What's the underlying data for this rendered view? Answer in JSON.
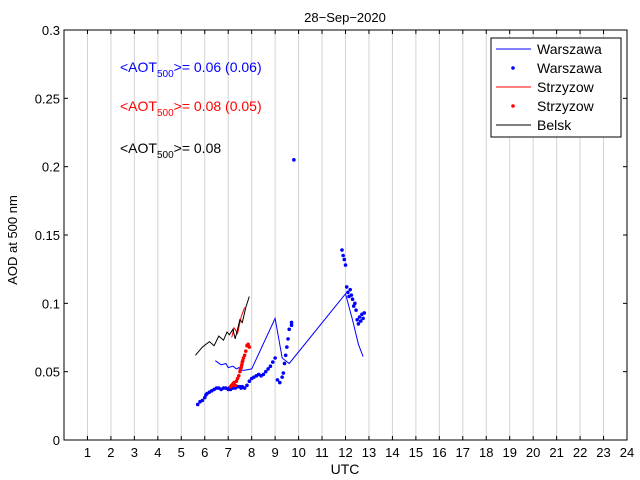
{
  "chart_data": {
    "type": "line",
    "title": "28−Sep−2020",
    "xlabel": "UTC",
    "ylabel": "AOD at 500 nm",
    "xlim": [
      0,
      24
    ],
    "ylim": [
      0,
      0.3
    ],
    "x_ticks": [
      1,
      2,
      3,
      4,
      5,
      6,
      7,
      8,
      9,
      10,
      11,
      12,
      13,
      14,
      15,
      16,
      17,
      18,
      19,
      20,
      21,
      22,
      23,
      24
    ],
    "y_ticks": [
      0,
      0.05,
      0.1,
      0.15,
      0.2,
      0.25,
      0.3
    ],
    "y_tick_labels": [
      "0",
      "0.05",
      "0.1",
      "0.15",
      "0.2",
      "0.25",
      "0.3"
    ],
    "grid": "vertical",
    "legend_position": "top-right",
    "legend": [
      {
        "label": "Warszawa",
        "style": "line",
        "color": "#0000ff"
      },
      {
        "label": "Warszawa",
        "style": "dots",
        "color": "#0000ff"
      },
      {
        "label": "Strzyzow",
        "style": "line",
        "color": "#ff0000"
      },
      {
        "label": "Strzyzow",
        "style": "dots",
        "color": "#ff0000"
      },
      {
        "label": "Belsk",
        "style": "line",
        "color": "#000000"
      }
    ],
    "annotations": [
      {
        "prefix": "<AOT",
        "sub": "500",
        "suffix": ">= 0.06 (0.06)",
        "color": "#0000ff"
      },
      {
        "prefix": "<AOT",
        "sub": "500",
        "suffix": ">= 0.08 (0.05)",
        "color": "#ff0000"
      },
      {
        "prefix": "<AOT",
        "sub": "500",
        "suffix": ">= 0.08",
        "color": "#000000"
      }
    ],
    "series": [
      {
        "label": "Warszawa",
        "style": "line",
        "color": "#0000ff",
        "x": [
          6.45,
          6.7,
          6.9,
          7.0,
          7.2,
          7.35,
          7.45,
          7.55,
          7.7,
          8.0,
          9.0,
          9.3,
          9.6,
          12.0,
          12.3,
          12.55,
          12.75
        ],
        "y": [
          0.058,
          0.055,
          0.056,
          0.053,
          0.054,
          0.052,
          0.053,
          0.051,
          0.051,
          0.052,
          0.089,
          0.06,
          0.056,
          0.107,
          0.088,
          0.07,
          0.061
        ]
      },
      {
        "label": "Strzyzow",
        "style": "line",
        "color": "#ff0000",
        "x": [
          7.15,
          7.25,
          7.4,
          7.55,
          7.7
        ],
        "y": [
          0.075,
          0.082,
          0.078,
          0.09,
          0.097
        ]
      },
      {
        "label": "Belsk",
        "style": "line",
        "color": "#000000",
        "x": [
          5.6,
          5.9,
          6.2,
          6.4,
          6.6,
          6.8,
          6.95,
          7.05,
          7.2,
          7.3,
          7.5,
          7.6,
          7.75,
          7.9
        ],
        "y": [
          0.062,
          0.068,
          0.072,
          0.069,
          0.076,
          0.073,
          0.079,
          0.077,
          0.081,
          0.074,
          0.088,
          0.086,
          0.097,
          0.105
        ]
      },
      {
        "label": "Warszawa",
        "style": "dots",
        "color": "#0000ff",
        "x": [
          5.7,
          5.8,
          5.9,
          6.0,
          6.05,
          6.1,
          6.2,
          6.3,
          6.4,
          6.5,
          6.6,
          6.7,
          6.8,
          6.9,
          7.0,
          7.05,
          7.1,
          7.2,
          7.3,
          7.4,
          7.5,
          7.55,
          7.6,
          7.7,
          7.8,
          7.9,
          8.0,
          8.1,
          8.2,
          8.3,
          8.4,
          8.5,
          8.6,
          8.7,
          8.8,
          8.9,
          9.0,
          9.1,
          9.2,
          9.3,
          9.35,
          9.4,
          9.45,
          9.5,
          9.55,
          9.6,
          9.7,
          9.7,
          9.8,
          11.85,
          11.9,
          11.95,
          12.0,
          12.05,
          12.1,
          12.15,
          12.2,
          12.25,
          12.3,
          12.35,
          12.4,
          12.45,
          12.5,
          12.55,
          12.6,
          12.65,
          12.7,
          12.75,
          12.8
        ],
        "y": [
          0.026,
          0.028,
          0.029,
          0.031,
          0.033,
          0.034,
          0.035,
          0.036,
          0.037,
          0.038,
          0.038,
          0.037,
          0.038,
          0.038,
          0.037,
          0.038,
          0.037,
          0.038,
          0.038,
          0.039,
          0.039,
          0.038,
          0.039,
          0.038,
          0.04,
          0.043,
          0.045,
          0.046,
          0.047,
          0.048,
          0.047,
          0.048,
          0.05,
          0.052,
          0.054,
          0.057,
          0.06,
          0.044,
          0.042,
          0.046,
          0.049,
          0.056,
          0.062,
          0.068,
          0.074,
          0.081,
          0.084,
          0.086,
          0.205,
          0.139,
          0.135,
          0.132,
          0.128,
          0.112,
          0.108,
          0.105,
          0.11,
          0.106,
          0.103,
          0.098,
          0.1,
          0.095,
          0.088,
          0.085,
          0.09,
          0.087,
          0.092,
          0.089,
          0.093
        ]
      },
      {
        "label": "Strzyzow",
        "style": "dots",
        "color": "#ff0000",
        "x": [
          7.1,
          7.15,
          7.2,
          7.25,
          7.3,
          7.35,
          7.4,
          7.45,
          7.5,
          7.52,
          7.55,
          7.58,
          7.6,
          7.62,
          7.65,
          7.7,
          7.75,
          7.8,
          7.85,
          7.9
        ],
        "y": [
          0.039,
          0.04,
          0.041,
          0.042,
          0.04,
          0.043,
          0.045,
          0.047,
          0.05,
          0.052,
          0.053,
          0.055,
          0.057,
          0.058,
          0.06,
          0.062,
          0.065,
          0.069,
          0.07,
          0.068
        ]
      }
    ]
  }
}
